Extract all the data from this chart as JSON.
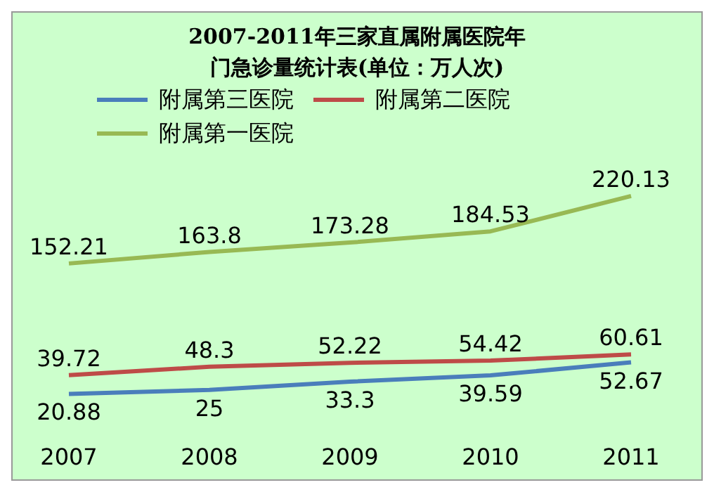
{
  "chart_data": {
    "type": "line",
    "title": "2007-2011年三家直属附属医院年门急诊量统计表(单位：万人次)",
    "categories": [
      "2007",
      "2008",
      "2009",
      "2010",
      "2011"
    ],
    "series": [
      {
        "name": "附属第三医院",
        "color": "#4a7ebb",
        "values": [
          20.88,
          25,
          33.3,
          39.59,
          52.67
        ]
      },
      {
        "name": "附属第二医院",
        "color": "#be4b48",
        "values": [
          39.72,
          48.3,
          52.22,
          54.42,
          60.61
        ]
      },
      {
        "name": "附属第一医院",
        "color": "#98b954",
        "values": [
          152.21,
          163.8,
          173.28,
          184.53,
          220.13
        ]
      }
    ],
    "data_labels": true,
    "legend": "top",
    "grid": false,
    "marker": "none",
    "line_style": "solid"
  }
}
